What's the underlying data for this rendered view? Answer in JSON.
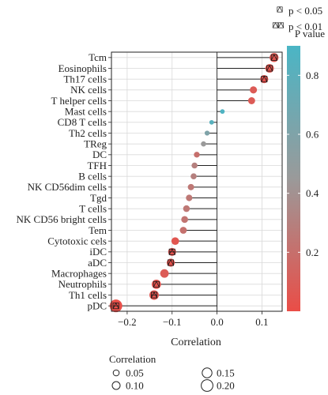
{
  "chart_data": {
    "type": "lollipop",
    "xlabel": "Correlation",
    "xlim": [
      -0.235,
      0.145
    ],
    "xticks": [
      -0.2,
      -0.1,
      0.0,
      0.1
    ],
    "xtick_labels": [
      "−0.2",
      "−0.1",
      "0.0",
      "0.1"
    ],
    "grid": true,
    "categories": [
      "Tcm",
      "Eosinophils",
      "Th17 cells",
      "NK cells",
      "T helper cells",
      "Mast cells",
      "CD8 T cells",
      "Th2 cells",
      "TReg",
      "DC",
      "TFH",
      "B cells",
      "NK CD56dim cells",
      "Tgd",
      "T cells",
      "NK CD56 bright cells",
      "Tem",
      "Cytotoxic cels",
      "iDC",
      "aDC",
      "Macrophages",
      "Neutrophils",
      "Th1 cells",
      "pDC"
    ],
    "correlation": [
      0.127,
      0.117,
      0.105,
      0.081,
      0.077,
      0.012,
      -0.012,
      -0.022,
      -0.03,
      -0.045,
      -0.05,
      -0.052,
      -0.058,
      -0.062,
      -0.068,
      -0.072,
      -0.075,
      -0.093,
      -0.1,
      -0.103,
      -0.117,
      -0.135,
      -0.14,
      -0.225
    ],
    "p_value": [
      0.05,
      0.04,
      0.03,
      0.08,
      0.08,
      0.87,
      0.82,
      0.6,
      0.45,
      0.2,
      0.3,
      0.3,
      0.25,
      0.25,
      0.25,
      0.23,
      0.21,
      0.05,
      0.03,
      0.02,
      0.08,
      0.03,
      0.04,
      0.01
    ],
    "significance": [
      "p<0.05",
      "p<0.05",
      "p<0.05",
      "",
      "",
      "",
      "",
      "",
      "",
      "",
      "",
      "",
      "",
      "",
      "",
      "",
      "",
      "",
      "p<0.01",
      "p<0.05",
      "",
      "p<0.05",
      "p<0.01",
      "p<0.01"
    ],
    "sig_legend": [
      {
        "symbol": "single",
        "label": "p < 0.05"
      },
      {
        "symbol": "double",
        "label": "p < 0.01"
      }
    ],
    "colorbar": {
      "title": "P value",
      "range": [
        0.0,
        0.9
      ],
      "ticks": [
        0.2,
        0.4,
        0.6,
        0.8
      ],
      "tick_labels": [
        "0.2",
        "0.4",
        "0.6",
        "0.8"
      ],
      "color_low": "#ea4d47",
      "color_mid": "#9a9a9a",
      "color_high": "#4ab5c5"
    },
    "size_legend": {
      "title": "Correlation",
      "entries": [
        {
          "value": 0.05,
          "label": "0.05"
        },
        {
          "value": 0.1,
          "label": "0.10"
        },
        {
          "value": 0.15,
          "label": "0.15"
        },
        {
          "value": 0.2,
          "label": "0.20"
        }
      ]
    }
  }
}
